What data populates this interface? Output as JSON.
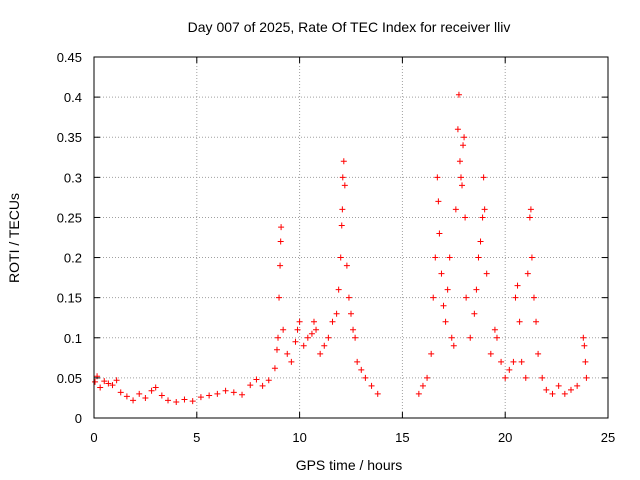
{
  "chart_data": {
    "type": "scatter",
    "title": "Day 007 of 2025, Rate Of TEC Index for receiver lliv",
    "xlabel": "GPS time / hours",
    "ylabel": "ROTI / TECUs",
    "xlim": [
      0,
      25
    ],
    "ylim": [
      0,
      0.45
    ],
    "xticks": [
      0,
      5,
      10,
      15,
      20,
      25
    ],
    "xtick_labels": [
      "0",
      "5",
      "10",
      "15",
      "20",
      "25"
    ],
    "yticks": [
      0,
      0.05,
      0.1,
      0.15,
      0.2,
      0.25,
      0.3,
      0.35,
      0.4,
      0.45
    ],
    "ytick_labels": [
      "0",
      "0.05",
      "0.1",
      "0.15",
      "0.2",
      "0.25",
      "0.3",
      "0.35",
      "0.4",
      "0.45"
    ],
    "grid": true,
    "marker": "+",
    "marker_color": "#ff0000",
    "series": [
      {
        "name": "ROTI",
        "points": [
          [
            0.05,
            0.045
          ],
          [
            0.15,
            0.052
          ],
          [
            0.3,
            0.038
          ],
          [
            0.5,
            0.046
          ],
          [
            0.7,
            0.043
          ],
          [
            0.9,
            0.041
          ],
          [
            1.1,
            0.047
          ],
          [
            1.3,
            0.032
          ],
          [
            1.6,
            0.027
          ],
          [
            1.9,
            0.022
          ],
          [
            2.2,
            0.03
          ],
          [
            2.5,
            0.025
          ],
          [
            2.8,
            0.034
          ],
          [
            3.0,
            0.038
          ],
          [
            3.3,
            0.028
          ],
          [
            3.6,
            0.022
          ],
          [
            4.0,
            0.02
          ],
          [
            4.4,
            0.023
          ],
          [
            4.8,
            0.021
          ],
          [
            5.2,
            0.026
          ],
          [
            5.6,
            0.028
          ],
          [
            6.0,
            0.03
          ],
          [
            6.4,
            0.034
          ],
          [
            6.8,
            0.032
          ],
          [
            7.2,
            0.029
          ],
          [
            7.6,
            0.041
          ],
          [
            7.9,
            0.048
          ],
          [
            8.2,
            0.04
          ],
          [
            8.5,
            0.047
          ],
          [
            8.8,
            0.062
          ],
          [
            8.9,
            0.085
          ],
          [
            8.95,
            0.1
          ],
          [
            9.0,
            0.15
          ],
          [
            9.05,
            0.19
          ],
          [
            9.08,
            0.22
          ],
          [
            9.1,
            0.238
          ],
          [
            9.2,
            0.11
          ],
          [
            9.4,
            0.08
          ],
          [
            9.6,
            0.07
          ],
          [
            9.8,
            0.095
          ],
          [
            9.9,
            0.11
          ],
          [
            10.0,
            0.12
          ],
          [
            10.2,
            0.09
          ],
          [
            10.4,
            0.1
          ],
          [
            10.6,
            0.105
          ],
          [
            10.7,
            0.12
          ],
          [
            10.8,
            0.11
          ],
          [
            11.0,
            0.08
          ],
          [
            11.2,
            0.09
          ],
          [
            11.4,
            0.1
          ],
          [
            11.6,
            0.12
          ],
          [
            11.8,
            0.13
          ],
          [
            11.9,
            0.16
          ],
          [
            12.0,
            0.2
          ],
          [
            12.05,
            0.24
          ],
          [
            12.08,
            0.26
          ],
          [
            12.1,
            0.3
          ],
          [
            12.15,
            0.32
          ],
          [
            12.2,
            0.29
          ],
          [
            12.3,
            0.19
          ],
          [
            12.4,
            0.15
          ],
          [
            12.5,
            0.13
          ],
          [
            12.6,
            0.11
          ],
          [
            12.7,
            0.1
          ],
          [
            12.8,
            0.07
          ],
          [
            13.0,
            0.06
          ],
          [
            13.2,
            0.05
          ],
          [
            13.5,
            0.04
          ],
          [
            13.8,
            0.03
          ],
          [
            15.8,
            0.03
          ],
          [
            16.0,
            0.04
          ],
          [
            16.2,
            0.05
          ],
          [
            16.4,
            0.08
          ],
          [
            16.5,
            0.15
          ],
          [
            16.6,
            0.2
          ],
          [
            16.7,
            0.3
          ],
          [
            16.75,
            0.27
          ],
          [
            16.8,
            0.23
          ],
          [
            16.9,
            0.18
          ],
          [
            17.0,
            0.14
          ],
          [
            17.1,
            0.12
          ],
          [
            17.2,
            0.16
          ],
          [
            17.3,
            0.2
          ],
          [
            17.4,
            0.1
          ],
          [
            17.5,
            0.09
          ],
          [
            17.6,
            0.26
          ],
          [
            17.7,
            0.36
          ],
          [
            17.75,
            0.403
          ],
          [
            17.8,
            0.32
          ],
          [
            17.85,
            0.3
          ],
          [
            17.9,
            0.29
          ],
          [
            17.95,
            0.34
          ],
          [
            18.0,
            0.35
          ],
          [
            18.05,
            0.25
          ],
          [
            18.1,
            0.15
          ],
          [
            18.3,
            0.1
          ],
          [
            18.5,
            0.13
          ],
          [
            18.6,
            0.16
          ],
          [
            18.7,
            0.2
          ],
          [
            18.8,
            0.22
          ],
          [
            18.9,
            0.25
          ],
          [
            18.95,
            0.3
          ],
          [
            19.0,
            0.26
          ],
          [
            19.1,
            0.18
          ],
          [
            19.3,
            0.08
          ],
          [
            19.5,
            0.11
          ],
          [
            19.6,
            0.1
          ],
          [
            19.8,
            0.07
          ],
          [
            20.0,
            0.05
          ],
          [
            20.2,
            0.06
          ],
          [
            20.4,
            0.07
          ],
          [
            20.5,
            0.15
          ],
          [
            20.6,
            0.165
          ],
          [
            20.7,
            0.12
          ],
          [
            20.8,
            0.07
          ],
          [
            21.0,
            0.05
          ],
          [
            21.1,
            0.18
          ],
          [
            21.2,
            0.25
          ],
          [
            21.25,
            0.26
          ],
          [
            21.3,
            0.2
          ],
          [
            21.4,
            0.15
          ],
          [
            21.5,
            0.12
          ],
          [
            21.6,
            0.08
          ],
          [
            21.8,
            0.05
          ],
          [
            22.0,
            0.035
          ],
          [
            22.3,
            0.03
          ],
          [
            22.6,
            0.04
          ],
          [
            22.9,
            0.03
          ],
          [
            23.2,
            0.035
          ],
          [
            23.5,
            0.04
          ],
          [
            23.8,
            0.1
          ],
          [
            23.85,
            0.09
          ],
          [
            23.9,
            0.07
          ],
          [
            23.95,
            0.05
          ]
        ]
      }
    ]
  }
}
